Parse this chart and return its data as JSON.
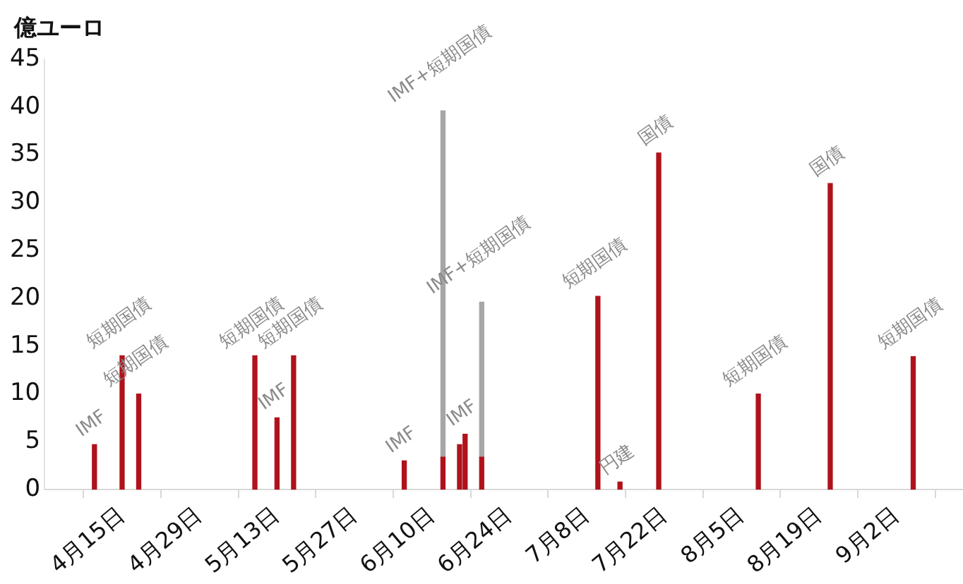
{
  "chart_data": {
    "type": "bar",
    "ylabel": "億ユーロ",
    "stacked": true,
    "x": [
      "--04-10",
      "--04-15",
      "--04-18",
      "--05-09",
      "--05-13",
      "--05-16",
      "--06-05",
      "--06-12",
      "--06-15",
      "--06-16",
      "--06-19",
      "--07-10",
      "--07-14",
      "--07-21",
      "--08-08",
      "--08-21",
      "--09-05"
    ],
    "series": [
      {
        "color": "#b0121b",
        "values": [
          4.7,
          14,
          10,
          14,
          7.5,
          14,
          3,
          3.4,
          4.7,
          5.8,
          3.4,
          20.2,
          0.8,
          35.2,
          10,
          32,
          13.9
        ]
      },
      {
        "color": "#a6a6a6",
        "values": [
          null,
          null,
          null,
          null,
          null,
          null,
          null,
          36.2,
          null,
          null,
          16.2,
          null,
          null,
          null,
          null,
          null,
          null
        ]
      }
    ],
    "xlim": [
      "--04-01",
      "--09-14"
    ],
    "xticks": [
      {
        "value": "--04-15",
        "label": "4月15日"
      },
      {
        "value": "--04-29",
        "label": "4月29日"
      },
      {
        "value": "--05-13",
        "label": "5月13日"
      },
      {
        "value": "--05-27",
        "label": "5月27日"
      },
      {
        "value": "--06-10",
        "label": "6月10日"
      },
      {
        "value": "--06-24",
        "label": "6月24日"
      },
      {
        "value": "--07-08",
        "label": "7月8日"
      },
      {
        "value": "--07-22",
        "label": "7月22日"
      },
      {
        "value": "--08-05",
        "label": "8月5日"
      },
      {
        "value": "--08-19",
        "label": "8月19日"
      },
      {
        "value": "--09-02",
        "label": "9月2日"
      }
    ],
    "ylim": [
      0,
      45
    ],
    "yticks": [
      0,
      5,
      10,
      15,
      20,
      25,
      30,
      35,
      40,
      45
    ],
    "annotations": [
      {
        "text": "IMF",
        "x": "--04-10",
        "y": 4.7
      },
      {
        "text": "短期国債",
        "x": "--04-15",
        "y": 14
      },
      {
        "text": "短期国債",
        "x": "--04-18",
        "y": 10
      },
      {
        "text": "短期国債",
        "x": "--05-09",
        "y": 14
      },
      {
        "text": "IMF",
        "x": "--05-13",
        "y": 7.5
      },
      {
        "text": "短期国債",
        "x": "--05-16",
        "y": 14
      },
      {
        "text": "IMF",
        "x": "--06-05",
        "y": 3
      },
      {
        "text": "IMF+短期国債",
        "x": "--06-12",
        "y": 39.6
      },
      {
        "text": "IMF",
        "x": "--06-16",
        "y": 5.8
      },
      {
        "text": "IMF+短期国債",
        "x": "--06-19",
        "y": 19.6
      },
      {
        "text": "短期国債",
        "x": "--07-10",
        "y": 20.2
      },
      {
        "text": "円建",
        "x": "--07-14",
        "y": 0.8
      },
      {
        "text": "国債",
        "x": "--07-21",
        "y": 35.2
      },
      {
        "text": "短期国債",
        "x": "--08-08",
        "y": 10
      },
      {
        "text": "国債",
        "x": "--08-21",
        "y": 32
      },
      {
        "text": "短期国債",
        "x": "--09-05",
        "y": 13.9
      }
    ]
  }
}
